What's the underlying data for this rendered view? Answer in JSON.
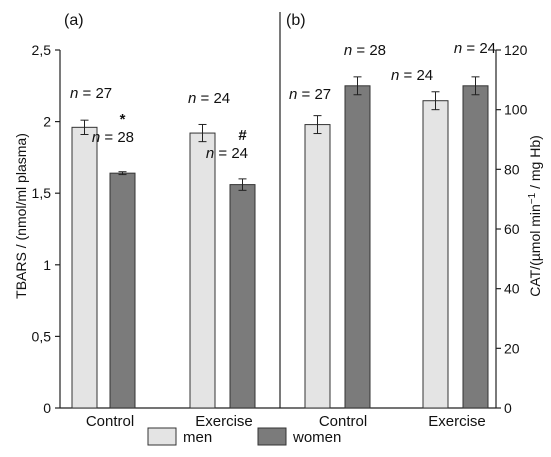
{
  "chart_data": [
    {
      "panel_label": "(a)",
      "type": "bar",
      "categories": [
        "Control",
        "Exercise"
      ],
      "series": [
        {
          "name": "men",
          "values": [
            1.96,
            1.92
          ],
          "errors": [
            0.05,
            0.06
          ],
          "n": [
            "27",
            "24"
          ],
          "marks": [
            "",
            ""
          ]
        },
        {
          "name": "women",
          "values": [
            1.64,
            1.56
          ],
          "errors": [
            0.01,
            0.04
          ],
          "n": [
            "28",
            "24"
          ],
          "marks": [
            "*",
            "#"
          ]
        }
      ],
      "ylabel": "TBARS / (nmol/ml plasma)",
      "ylim": [
        0,
        2.5
      ],
      "yticks": [
        "0",
        "0,5",
        "1",
        "1,5",
        "2",
        "2,5"
      ],
      "y_axis": "left"
    },
    {
      "panel_label": "(b)",
      "type": "bar",
      "categories": [
        "Control",
        "Exercise"
      ],
      "series": [
        {
          "name": "men",
          "values": [
            95,
            103
          ],
          "errors": [
            3,
            3
          ],
          "n": [
            "27",
            "24"
          ]
        },
        {
          "name": "women",
          "values": [
            108,
            108
          ],
          "errors": [
            3,
            3
          ],
          "n": [
            "28",
            "24"
          ]
        }
      ],
      "ylabel": "CAT/(µmol min⁻¹ / mg Hb)",
      "ylim": [
        0,
        120
      ],
      "yticks": [
        "0",
        "20",
        "40",
        "60",
        "80",
        "100",
        "120"
      ],
      "y_axis": "right"
    }
  ],
  "legend": {
    "items": [
      {
        "label": "men",
        "color": "#e4e4e4"
      },
      {
        "label": "women",
        "color": "#7b7b7b"
      }
    ],
    "position": "bottom"
  },
  "n_prefix": "n",
  "colors": {
    "men": "#e4e4e4",
    "women": "#7b7b7b",
    "stroke": "#333333"
  }
}
